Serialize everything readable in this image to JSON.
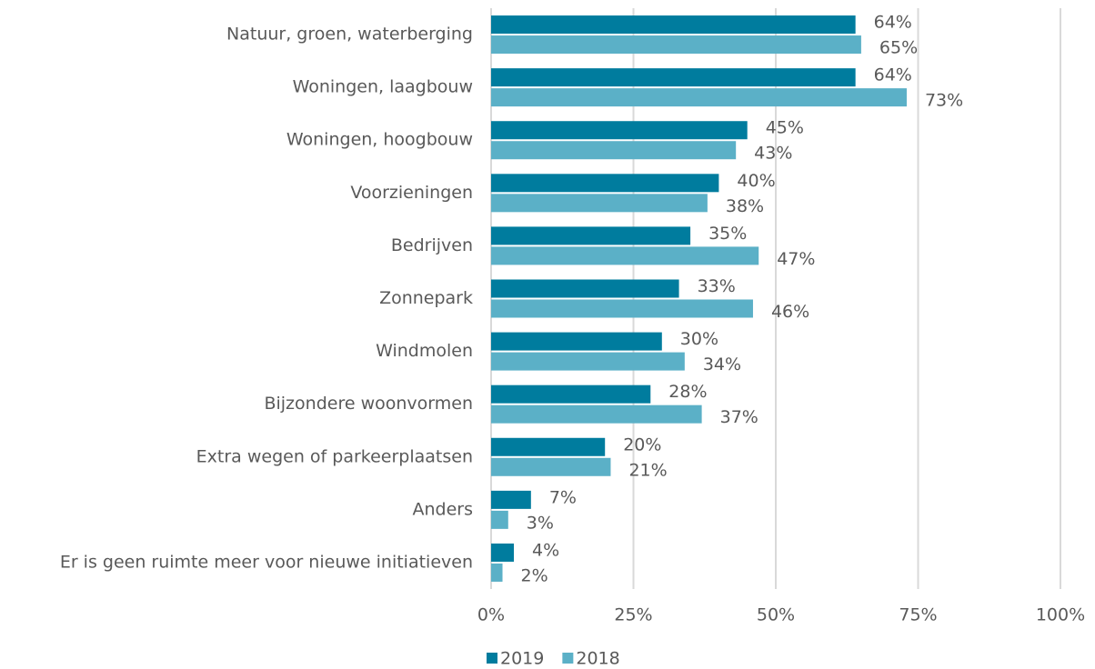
{
  "chart_data": {
    "type": "bar",
    "orientation": "horizontal",
    "categories": [
      "Natuur, groen, waterberging",
      "Woningen, laagbouw",
      "Woningen, hoogbouw",
      "Voorzieningen",
      "Bedrijven",
      "Zonnepark",
      "Windmolen",
      "Bijzondere woonvormen",
      "Extra wegen of parkeerplaatsen",
      "Anders",
      "Er is geen ruimte meer voor nieuwe initiatieven"
    ],
    "series": [
      {
        "name": "2019",
        "color": "#007c9e",
        "values": [
          64,
          64,
          45,
          40,
          35,
          33,
          30,
          28,
          20,
          7,
          4
        ],
        "value_labels": [
          "64%",
          "64%",
          "45%",
          "40%",
          "35%",
          "33%",
          "30%",
          "28%",
          "20%",
          "7%",
          "4%"
        ]
      },
      {
        "name": "2018",
        "color": "#5bb0c7",
        "values": [
          65,
          73,
          43,
          38,
          47,
          46,
          34,
          37,
          21,
          3,
          2
        ],
        "value_labels": [
          "65%",
          "73%",
          "43%",
          "38%",
          "47%",
          "46%",
          "34%",
          "37%",
          "21%",
          "3%",
          "2%"
        ]
      }
    ],
    "xlim": [
      0,
      100
    ],
    "xticks": [
      {
        "value": 0,
        "label": "0%"
      },
      {
        "value": 25,
        "label": "25%"
      },
      {
        "value": 50,
        "label": "50%"
      },
      {
        "value": 75,
        "label": "75%"
      },
      {
        "value": 100,
        "label": "100%"
      }
    ],
    "grid": true,
    "legend": "bottom"
  }
}
